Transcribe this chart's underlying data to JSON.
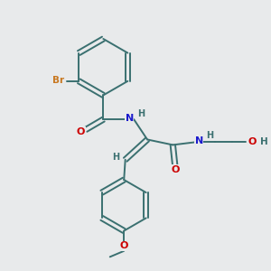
{
  "background_color": "#e8eaeb",
  "bond_color": "#3a7070",
  "atom_colors": {
    "Br": "#c87820",
    "O": "#cc0000",
    "N": "#1a1acc",
    "H": "#3a7070",
    "C": "#3a7070"
  }
}
